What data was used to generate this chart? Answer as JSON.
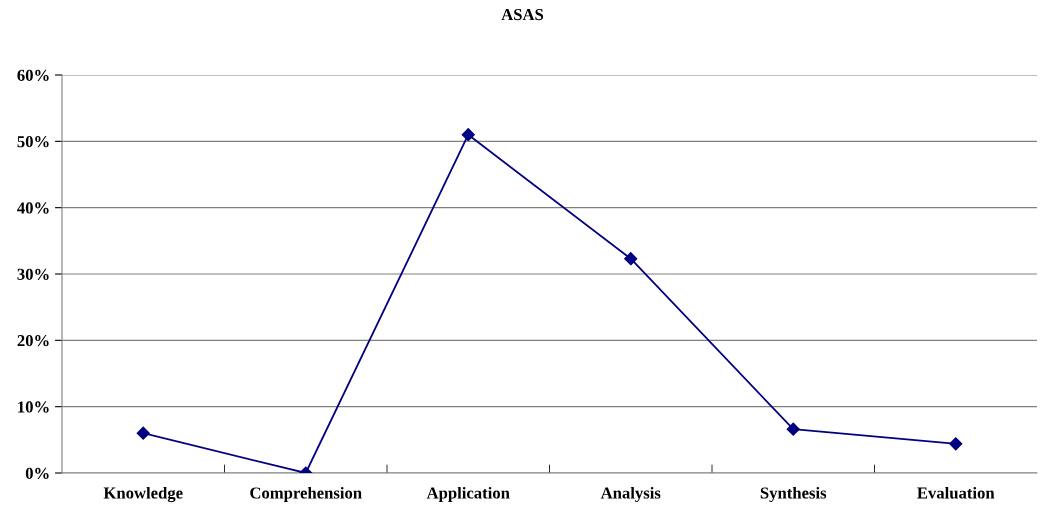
{
  "chart_data": {
    "type": "line",
    "title": "ASAS",
    "categories": [
      "Knowledge",
      "Comprehension",
      "Application",
      "Analysis",
      "Synthesis",
      "Evaluation"
    ],
    "series": [
      {
        "color": "#000080",
        "values": [
          6.0,
          0,
          51.0,
          32.3,
          6.6,
          4.4
        ]
      }
    ],
    "ylim": [
      0,
      60
    ],
    "yticks": [
      {
        "value": 0,
        "label": "0%"
      },
      {
        "value": 10,
        "label": "10%"
      },
      {
        "value": 20,
        "label": "20%"
      },
      {
        "value": 30,
        "label": "30%"
      },
      {
        "value": 40,
        "label": "40%"
      },
      {
        "value": 50,
        "label": "50%"
      },
      {
        "value": 60,
        "label": "60%"
      }
    ],
    "grid": "y",
    "marker": "diamond",
    "line_style": "solid"
  }
}
